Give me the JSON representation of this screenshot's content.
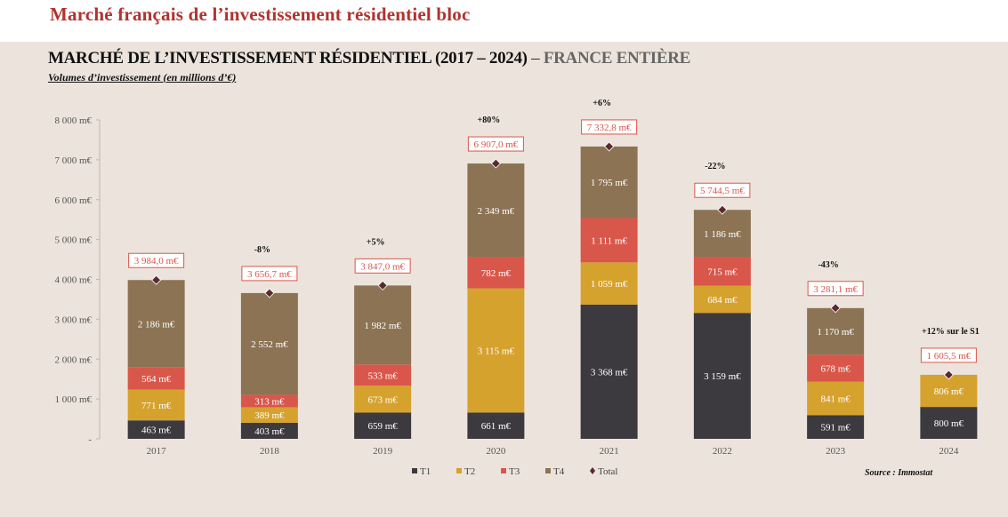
{
  "page": {
    "title": "Marché français de l’investissement résidentiel bloc"
  },
  "chart_data": {
    "type": "bar",
    "stacked": true,
    "title_main": "MARCHÉ DE L’INVESTISSEMENT RÉSIDENTIEL (2017 – 2024)",
    "title_dash": "–",
    "title_scope": "FRANCE ENTIÈRE",
    "subtitle": "Volumes d’investissement (en millions d’€)",
    "source": "Source : Immostat",
    "categories": [
      "2017",
      "2018",
      "2019",
      "2020",
      "2021",
      "2022",
      "2023",
      "2024"
    ],
    "series": [
      {
        "name": "T1",
        "color": "#3d3a3f",
        "values": [
          463,
          403,
          659,
          661,
          3368,
          3159,
          591,
          800
        ],
        "labels": [
          "463 m€",
          "403 m€",
          "659 m€",
          "661 m€",
          "3 368 m€",
          "3 159 m€",
          "591 m€",
          "800 m€"
        ]
      },
      {
        "name": "T2",
        "color": "#d6a22e",
        "values": [
          771,
          389,
          673,
          3115,
          1059,
          684,
          841,
          806
        ],
        "labels": [
          "771 m€",
          "389 m€",
          "673 m€",
          "3 115 m€",
          "1 059 m€",
          "684 m€",
          "841 m€",
          "806 m€"
        ]
      },
      {
        "name": "T3",
        "color": "#d9574a",
        "values": [
          564,
          313,
          533,
          782,
          1111,
          715,
          678,
          null
        ],
        "labels": [
          "564 m€",
          "313 m€",
          "533 m€",
          "782 m€",
          "1 111 m€",
          "715 m€",
          "678 m€",
          ""
        ]
      },
      {
        "name": "T4",
        "color": "#8c7354",
        "values": [
          2186,
          2552,
          1982,
          2349,
          1795,
          1186,
          1170,
          null
        ],
        "labels": [
          "2 186 m€",
          "2 552 m€",
          "1 982 m€",
          "2 349 m€",
          "1 795 m€",
          "1 186 m€",
          "1 170 m€",
          ""
        ]
      }
    ],
    "totals": {
      "name": "Total",
      "color": "#5a2a2e",
      "values": [
        3984.0,
        3656.7,
        3847.0,
        6907.0,
        7332.8,
        5744.5,
        3281.1,
        1605.5
      ],
      "labels": [
        "3 984,0 m€",
        "3 656,7 m€",
        "3 847,0 m€",
        "6 907,0 m€",
        "7 332,8 m€",
        "5 744,5 m€",
        "3 281,1 m€",
        "1 605,5 m€"
      ]
    },
    "changes": [
      "",
      "-8%",
      "+5%",
      "+80%",
      "+6%",
      "-22%",
      "-43%",
      "+12% sur le S1"
    ],
    "yaxis": {
      "min": 0,
      "max": 8000,
      "ticks": [
        0,
        1000,
        2000,
        3000,
        4000,
        5000,
        6000,
        7000,
        8000
      ],
      "tick_labels": [
        "-",
        "1 000 m€",
        "2 000 m€",
        "3 000 m€",
        "4 000 m€",
        "5 000 m€",
        "6 000 m€",
        "7 000 m€",
        "8 000 m€"
      ]
    },
    "grid": false,
    "legend_position": "bottom",
    "label_color": "#ffffff",
    "callout_color": "#d9574a"
  }
}
